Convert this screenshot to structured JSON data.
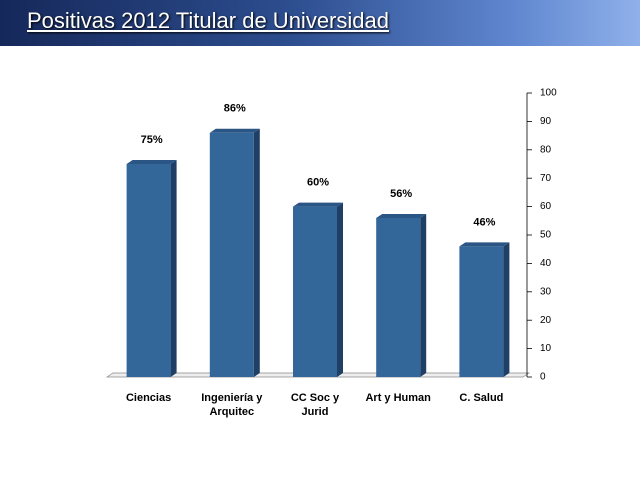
{
  "chart_data": {
    "type": "bar",
    "title": "Positivas 2012 Titular de Universidad",
    "categories": [
      "Ciencias",
      "Ingeniería y Arquitec",
      "CC Soc y Jurid",
      "Art y Human",
      "C. Salud"
    ],
    "values": [
      75,
      86,
      60,
      56,
      46
    ],
    "value_labels": [
      "75%",
      "86%",
      "60%",
      "56%",
      "46%"
    ],
    "color": "#336699",
    "ylim": [
      0,
      100
    ],
    "yticks": [
      0,
      10,
      20,
      30,
      40,
      50,
      60,
      70,
      80,
      90,
      100
    ],
    "y_axis_side": "right",
    "grid": false
  }
}
